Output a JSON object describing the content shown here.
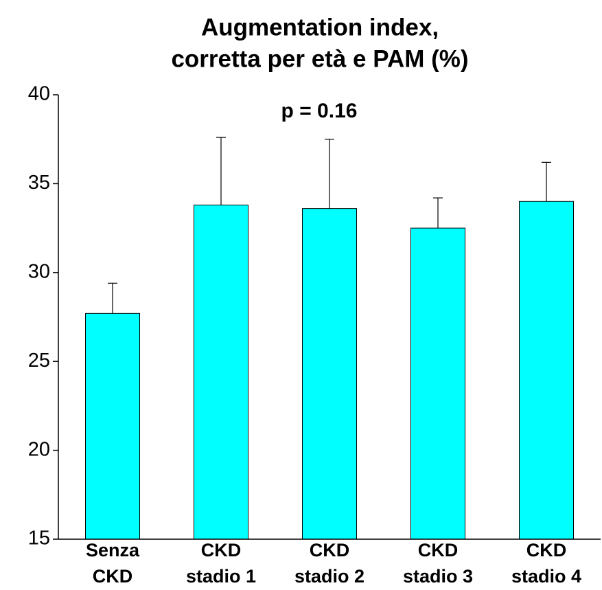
{
  "chart_data": {
    "type": "bar",
    "title": [
      "Augmentation index,",
      "corretta per età e PAM (%)"
    ],
    "annotation": "p = 0.16",
    "categories": [
      [
        "Senza",
        "CKD"
      ],
      [
        "CKD",
        "stadio 1"
      ],
      [
        "CKD",
        "stadio 2"
      ],
      [
        "CKD",
        "stadio 3"
      ],
      [
        "CKD",
        "stadio 4"
      ]
    ],
    "values": [
      27.7,
      33.8,
      33.6,
      32.5,
      34.0
    ],
    "errors": [
      1.7,
      3.8,
      3.9,
      1.7,
      2.2
    ],
    "color": "#00ffff",
    "ylim": [
      15,
      40
    ],
    "yticks": [
      15,
      20,
      25,
      30,
      35,
      40
    ],
    "grid": false
  }
}
